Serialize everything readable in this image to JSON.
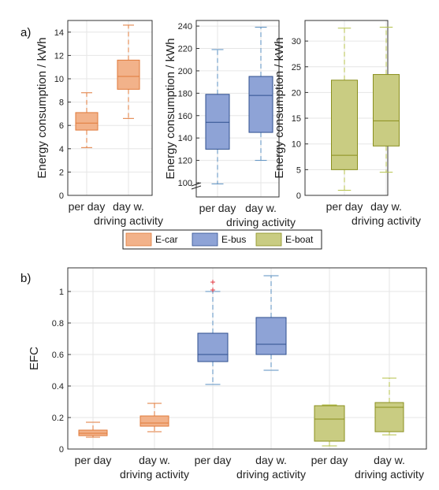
{
  "panel_labels": [
    "a)",
    "b)"
  ],
  "colors": {
    "ecar": {
      "fill": "#f2b28a",
      "edge": "#e07a3a"
    },
    "ebus": {
      "fill": "#8ea3d6",
      "edge": "#2f4f8f",
      "whisker": "#5a8fc0"
    },
    "eboat": {
      "fill": "#c9cc82",
      "edge": "#8a8f1e",
      "whisker": "#b5c24a"
    },
    "outlier": "#e0202a"
  },
  "legend": [
    {
      "label": "E-car",
      "key": "ecar"
    },
    {
      "label": "E-bus",
      "key": "ebus"
    },
    {
      "label": "E-boat",
      "key": "eboat"
    }
  ],
  "chart_data": [
    {
      "type": "box",
      "ylabel": "Energy consumption / kWh",
      "ylim": [
        0,
        15
      ],
      "yticks": [
        "0",
        "2",
        "4",
        "6",
        "8",
        "10",
        "12",
        "14"
      ],
      "xticks": [
        "per day",
        "day w."
      ],
      "xlabel2": "driving activity",
      "grid": true,
      "color": "ecar",
      "boxes": [
        {
          "category": "per day",
          "min": 4.1,
          "q1": 5.6,
          "median": 6.2,
          "q3": 7.1,
          "max": 8.8
        },
        {
          "category": "day w.",
          "min": 6.6,
          "q1": 9.1,
          "median": 10.2,
          "q3": 11.6,
          "max": 14.6
        }
      ]
    },
    {
      "type": "box",
      "ylabel": "Energy consumption / kWh",
      "ylim": [
        100,
        245
      ],
      "yticks": [
        "100",
        "120",
        "140",
        "160",
        "180",
        "200",
        "220",
        "240"
      ],
      "broken_axis": true,
      "xticks": [
        "per day",
        "day w."
      ],
      "xlabel2": "driving activity",
      "grid": true,
      "color": "ebus",
      "boxes": [
        {
          "category": "per day",
          "min": 99,
          "q1": 130,
          "median": 154,
          "q3": 179,
          "max": 219
        },
        {
          "category": "day w.",
          "min": 120,
          "q1": 145,
          "median": 178,
          "q3": 195,
          "max": 239
        }
      ]
    },
    {
      "type": "box",
      "ylabel": "Energy consumption / kWh",
      "ylim": [
        0,
        34
      ],
      "yticks": [
        "0",
        "5",
        "10",
        "15",
        "20",
        "25",
        "30"
      ],
      "xticks": [
        "per day",
        "day w."
      ],
      "xlabel2": "driving activity",
      "grid": true,
      "color": "eboat",
      "boxes": [
        {
          "category": "per day",
          "min": 1.0,
          "q1": 5.0,
          "median": 7.8,
          "q3": 22.4,
          "max": 32.5
        },
        {
          "category": "day w.",
          "min": 4.5,
          "q1": 9.6,
          "median": 14.5,
          "q3": 23.5,
          "max": 32.7
        }
      ]
    },
    {
      "type": "box",
      "ylabel": "EFC",
      "ylim": [
        0,
        1.15
      ],
      "yticks": [
        "0",
        "0.2",
        "0.4",
        "0.6",
        "0.8",
        "1"
      ],
      "xticks": [
        "per day",
        "day w.",
        "per day",
        "day w.",
        "per day",
        "day w."
      ],
      "xlabel2": "driving activity",
      "grid": true,
      "boxes": [
        {
          "category": "per day",
          "color": "ecar",
          "min": 0.075,
          "q1": 0.085,
          "median": 0.1,
          "q3": 0.12,
          "max": 0.17
        },
        {
          "category": "day w.",
          "color": "ecar",
          "min": 0.11,
          "q1": 0.145,
          "median": 0.165,
          "q3": 0.21,
          "max": 0.29
        },
        {
          "category": "per day",
          "color": "ebus",
          "min": 0.41,
          "q1": 0.555,
          "median": 0.6,
          "q3": 0.735,
          "max": 1.0,
          "outliers": [
            1.06,
            1.01
          ]
        },
        {
          "category": "day w.",
          "color": "ebus",
          "min": 0.5,
          "q1": 0.6,
          "median": 0.665,
          "q3": 0.835,
          "max": 1.1
        },
        {
          "category": "per day",
          "color": "eboat",
          "min": 0.02,
          "q1": 0.05,
          "median": 0.19,
          "q3": 0.275,
          "max": 0.28
        },
        {
          "category": "day w.",
          "color": "eboat",
          "min": 0.09,
          "q1": 0.11,
          "median": 0.265,
          "q3": 0.295,
          "max": 0.45
        }
      ]
    }
  ]
}
